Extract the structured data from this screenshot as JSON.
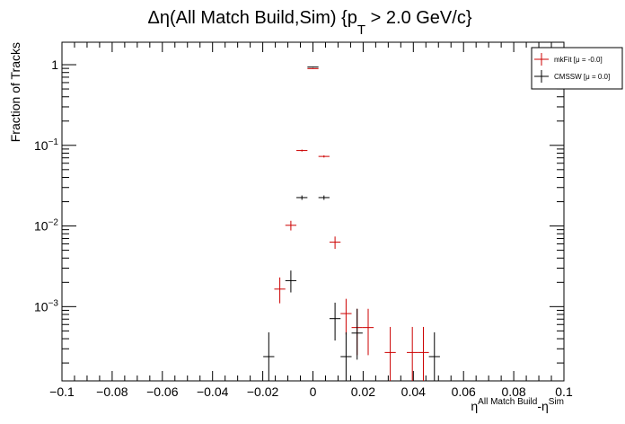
{
  "chart_data": {
    "type": "scatter",
    "title": {
      "prefix": "Δη(All Match Build,Sim) {p",
      "sub": "T",
      "suffix": " > 2.0 GeV/c}"
    },
    "ylabel": "Fraction of Tracks",
    "xlabel": {
      "base1": "η",
      "sup1": "All Match Build",
      "mid": "-η",
      "sup2": "Sim"
    },
    "xlim": [
      -0.1,
      0.1
    ],
    "ylim": [
      0.00012,
      1.9
    ],
    "yscale": "log",
    "x_ticks": [
      -0.1,
      -0.08,
      -0.06,
      -0.04,
      -0.02,
      0,
      0.02,
      0.04,
      0.06,
      0.08,
      0.1
    ],
    "x_tick_labels": [
      "−0.1",
      "−0.08",
      "−0.06",
      "−0.04",
      "−0.02",
      "0",
      "0.02",
      "0.04",
      "0.06",
      "0.08",
      "0.1"
    ],
    "y_ticks": [
      {
        "value": 1,
        "base": "1",
        "exp": ""
      },
      {
        "value": 0.1,
        "base": "10",
        "exp": "−1"
      },
      {
        "value": 0.01,
        "base": "10",
        "exp": "−2"
      },
      {
        "value": 0.001,
        "base": "10",
        "exp": "−3"
      }
    ],
    "grid": false,
    "legend": {
      "placement": "top-right",
      "entries": [
        "mkFit  [μ = -0.0]",
        "CMSSW  [μ =  0.0]"
      ]
    },
    "series": [
      {
        "name": "mkFit  [μ = -0.0]",
        "color": "#cc0000",
        "points": [
          {
            "x": -0.0132,
            "y": 0.00165,
            "ylo": 0.0011,
            "yhi": 0.0023
          },
          {
            "x": -0.0088,
            "y": 0.0102,
            "ylo": 0.0088,
            "yhi": 0.0116
          },
          {
            "x": -0.0044,
            "y": 0.0862,
            "ylo": 0.0838,
            "yhi": 0.0886
          },
          {
            "x": 0.0,
            "y": 0.895,
            "ylo": 0.885,
            "yhi": 0.905
          },
          {
            "x": 0.0044,
            "y": 0.0729,
            "ylo": 0.0706,
            "yhi": 0.0752
          },
          {
            "x": 0.0088,
            "y": 0.0063,
            "ylo": 0.0052,
            "yhi": 0.0074
          },
          {
            "x": 0.0132,
            "y": 0.00082,
            "ylo": 0.00045,
            "yhi": 0.00125
          },
          {
            "x": 0.0176,
            "y": 0.00055,
            "ylo": 0.00025,
            "yhi": 0.00094
          },
          {
            "x": 0.022,
            "y": 0.00055,
            "ylo": 0.00025,
            "yhi": 0.00094
          },
          {
            "x": 0.0308,
            "y": 0.00027,
            "ylo": 0.00012,
            "yhi": 0.00056
          },
          {
            "x": 0.0396,
            "y": 0.00027,
            "ylo": 0.00012,
            "yhi": 0.00056
          },
          {
            "x": 0.044,
            "y": 0.00027,
            "ylo": 0.00012,
            "yhi": 0.00056
          }
        ]
      },
      {
        "name": "CMSSW  [μ =  0.0]",
        "color": "#000000",
        "points": [
          {
            "x": -0.0176,
            "y": 0.00024,
            "ylo": 0.00012,
            "yhi": 0.00048
          },
          {
            "x": -0.0088,
            "y": 0.0021,
            "ylo": 0.0015,
            "yhi": 0.0028
          },
          {
            "x": -0.0044,
            "y": 0.0225,
            "ylo": 0.0211,
            "yhi": 0.0239
          },
          {
            "x": 0.0,
            "y": 0.935,
            "ylo": 0.925,
            "yhi": 0.945
          },
          {
            "x": 0.0044,
            "y": 0.0225,
            "ylo": 0.0211,
            "yhi": 0.0239
          },
          {
            "x": 0.0088,
            "y": 0.00071,
            "ylo": 0.00038,
            "yhi": 0.00112
          },
          {
            "x": 0.0132,
            "y": 0.00024,
            "ylo": 0.00012,
            "yhi": 0.00048
          },
          {
            "x": 0.0176,
            "y": 0.00047,
            "ylo": 0.00022,
            "yhi": 0.00094
          },
          {
            "x": 0.0484,
            "y": 0.00024,
            "ylo": 0.00012,
            "yhi": 0.00048
          }
        ]
      }
    ]
  }
}
